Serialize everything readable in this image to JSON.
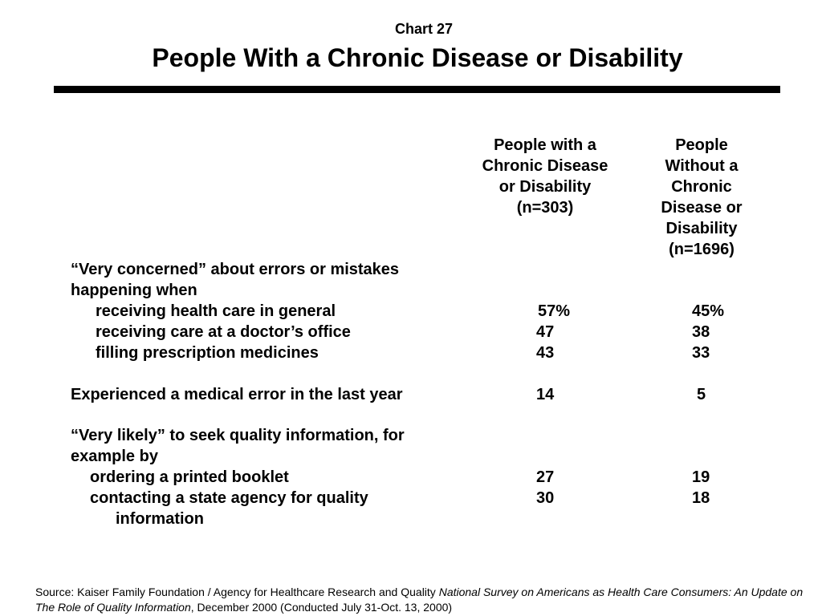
{
  "header": {
    "chart_number": "Chart 27",
    "title": "People With a Chronic Disease or Disability"
  },
  "columns": {
    "col1": [
      "People with a",
      "Chronic Disease",
      "or Disability",
      "(n=303)"
    ],
    "col2": [
      "People",
      "Without a",
      "Chronic",
      "Disease or",
      "Disability",
      "(n=1696)"
    ]
  },
  "rows": [
    {
      "label": "“Very concerned” about errors or mistakes",
      "v1": "",
      "v2": ""
    },
    {
      "label": "happening when",
      "v1": "",
      "v2": ""
    },
    {
      "label": "receiving health care in general",
      "v1": "57%",
      "v2": "45%"
    },
    {
      "label": "receiving care at a doctor’s office",
      "v1": "47",
      "v2": "38"
    },
    {
      "label": "filling prescription medicines",
      "v1": "43",
      "v2": "33"
    },
    {
      "label": "Experienced a medical error in the last year",
      "v1": "14",
      "v2": "5"
    },
    {
      "label": "“Very likely” to seek quality information, for",
      "v1": "",
      "v2": ""
    },
    {
      "label": "example by",
      "v1": "",
      "v2": ""
    },
    {
      "label": "ordering a printed booklet",
      "v1": "27",
      "v2": "19"
    },
    {
      "label": "contacting a state agency for quality",
      "v1": "30",
      "v2": "18"
    },
    {
      "label": "information",
      "v1": "",
      "v2": ""
    }
  ],
  "footer": {
    "source_prefix": "Source: Kaiser Family Foundation / Agency for Healthcare Research and Quality ",
    "source_title": "National Survey on Americans as Health Care Consumers:  An Update on The Role of Quality Information",
    "source_suffix": ", December 2000 (Conducted July 31-Oct. 13, 2000)"
  }
}
